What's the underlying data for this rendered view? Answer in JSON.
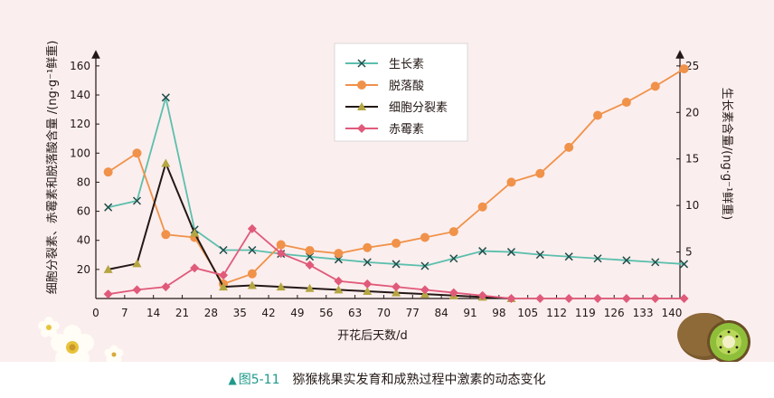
{
  "chart_data": {
    "type": "line",
    "xlabel": "开花后天数/d",
    "ylabel_left": "细胞分裂素、赤霉素和脱落酸含量 /(ng·g⁻¹鲜重)",
    "ylabel_right": "生长素含量/(ng·g⁻¹鲜重)",
    "x_ticks": [
      0,
      7,
      14,
      21,
      28,
      35,
      42,
      49,
      56,
      63,
      70,
      77,
      84,
      91,
      98,
      105,
      112,
      119,
      126,
      133,
      140
    ],
    "x_range": [
      0,
      142
    ],
    "y_left_ticks": [
      20,
      40,
      60,
      80,
      100,
      120,
      140,
      160
    ],
    "y_left_range": [
      0,
      168
    ],
    "y_right_ticks": [
      5,
      10,
      15,
      20,
      25
    ],
    "y_right_range": [
      0,
      26.25
    ],
    "legend_position": "top-center",
    "series": [
      {
        "name": "生长素",
        "axis": "right",
        "color": "#5bbfad",
        "marker": "x",
        "x": [
          3,
          10,
          17,
          24,
          31,
          38,
          45,
          52,
          59,
          66,
          73,
          80,
          87,
          94,
          101,
          108,
          115,
          122,
          129,
          136,
          143
        ],
        "y": [
          9.8,
          10.5,
          21.6,
          7.4,
          5.2,
          5.2,
          4.8,
          4.5,
          4.2,
          3.9,
          3.7,
          3.5,
          4.3,
          5.1,
          5.0,
          4.7,
          4.5,
          4.3,
          4.1,
          3.9,
          3.7
        ],
        "display_x": [
          3,
          10,
          17,
          24,
          30.5,
          38,
          45,
          52,
          59,
          66,
          73,
          80,
          87,
          94,
          101,
          108,
          115,
          122,
          129,
          136,
          143
        ]
      },
      {
        "name": "脱落酸",
        "axis": "left",
        "color": "#f0924a",
        "marker": "circle",
        "x": [
          3,
          10,
          17,
          24,
          31,
          38,
          45,
          52,
          59,
          66,
          73,
          80,
          87,
          94,
          101,
          108,
          115,
          122,
          129,
          136,
          143
        ],
        "y": [
          87,
          100,
          44,
          42,
          10,
          17,
          37,
          33,
          31,
          35,
          38,
          42,
          46,
          63,
          80,
          86,
          104,
          126,
          135,
          146,
          158
        ]
      },
      {
        "name": "细胞分裂素",
        "axis": "left",
        "color": "#231815",
        "marker": "triangle",
        "marker_color": "#b5a642",
        "x": [
          3,
          10,
          17,
          24,
          31,
          38,
          45,
          52,
          59,
          66,
          73,
          80,
          87,
          94,
          101
        ],
        "y": [
          20,
          24,
          93,
          45,
          8,
          9,
          8,
          7,
          6,
          5,
          4,
          3,
          2,
          1,
          0
        ]
      },
      {
        "name": "赤霉素",
        "axis": "left",
        "color": "#e05a7a",
        "marker": "diamond",
        "x": [
          3,
          10,
          17,
          24,
          31,
          38,
          45,
          52,
          59,
          66,
          73,
          80,
          87,
          94,
          101,
          108,
          115,
          122,
          129,
          136,
          143
        ],
        "y": [
          3,
          6,
          8,
          21,
          16,
          48,
          31,
          23,
          12,
          10,
          8,
          6,
          4,
          2,
          0,
          0,
          0,
          0,
          0,
          0,
          0
        ]
      }
    ]
  },
  "caption": {
    "figure_number": "图5-11",
    "title": "猕猴桃果实发育和成熟过程中激素的动态变化"
  },
  "decor": {
    "flower": "flower-illustration",
    "kiwi": "kiwi-illustration"
  }
}
